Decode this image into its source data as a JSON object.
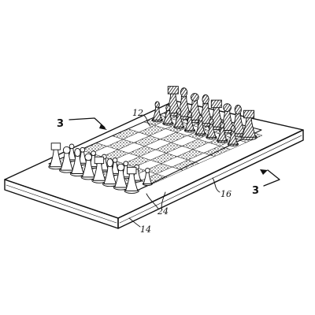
{
  "figure": {
    "labels": {
      "section_left": "3",
      "section_right": "3",
      "ref_board_top": "12",
      "ref_board_front": "14",
      "ref_board_side": "16",
      "ref_piece": "24"
    },
    "board": {
      "ranks": 8,
      "files": 8
    },
    "pieces": {
      "near_set": "light",
      "far_set": "dark",
      "count_per_side": 16
    }
  }
}
